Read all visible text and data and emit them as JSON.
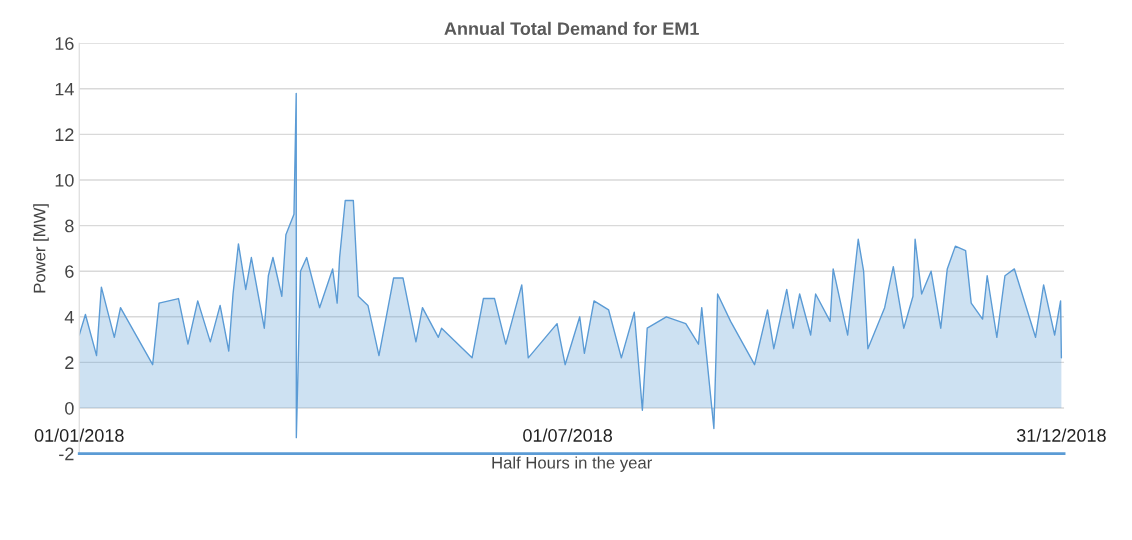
{
  "chart_data": {
    "type": "area",
    "title": "Annual Total Demand for EM1",
    "xlabel": "Half Hours in the year",
    "ylabel": "Power [MW]",
    "x": [
      "2018-01-01T00:00",
      "2018-01-03T07:00",
      "2018-01-07T10:00",
      "2018-01-09T05:00",
      "2018-01-14T00:00",
      "2018-01-16T07:00",
      "2018-01-28T05:00",
      "2018-01-30T14:00",
      "2018-02-06T19:00",
      "2018-02-10T07:00",
      "2018-02-13T22:00",
      "2018-02-18T14:00",
      "2018-02-22T05:00",
      "2018-02-25T10:00",
      "2018-02-27T00:00",
      "2018-03-01T00:00",
      "2018-03-03T17:00",
      "2018-03-05T19:00",
      "2018-03-10T14:00",
      "2018-03-12T02:00",
      "2018-03-13T19:00",
      "2018-03-17T02:00",
      "2018-03-18T14:00",
      "2018-03-21T14:00",
      "2018-03-22T10:00",
      "2018-03-22T11:00",
      "2018-03-24T00:00",
      "2018-03-26T07:00",
      "2018-03-31T02:00",
      "2018-04-04T22:00",
      "2018-04-06T14:00",
      "2018-04-07T12:00",
      "2018-04-09T14:00",
      "2018-04-12T14:00",
      "2018-04-14T10:00",
      "2018-04-18T00:00",
      "2018-04-22T02:00",
      "2018-04-27T12:00",
      "2018-05-01T00:00",
      "2018-05-05T19:00",
      "2018-05-08T05:00",
      "2018-05-14T02:00",
      "2018-05-15T07:00",
      "2018-05-26T14:00",
      "2018-05-30T19:00",
      "2018-06-03T22:00",
      "2018-06-08T02:00",
      "2018-06-14T00:00",
      "2018-06-16T10:00",
      "2018-06-27T02:00",
      "2018-06-30T02:00",
      "2018-07-05T12:00",
      "2018-07-07T05:00",
      "2018-07-10T19:00",
      "2018-07-16T05:00",
      "2018-07-20T22:00",
      "2018-07-25T17:00",
      "2018-07-28T17:00",
      "2018-07-30T12:00",
      "2018-08-06T14:00",
      "2018-08-13T19:00",
      "2018-08-18T12:00",
      "2018-08-19T17:00",
      "2018-08-24T05:00",
      "2018-08-25T00:00",
      "2018-08-25T14:00",
      "2018-08-30T10:00",
      "2018-09-08T07:00",
      "2018-09-13T02:00",
      "2018-09-15T10:00",
      "2018-09-20T05:00",
      "2018-09-22T14:00",
      "2018-09-25T00:00",
      "2018-09-29T02:00",
      "2018-09-30T22:00",
      "2018-10-06T07:00",
      "2018-10-07T10:00",
      "2018-10-12T19:00",
      "2018-10-16T17:00",
      "2018-10-18T17:00",
      "2018-10-20T07:00",
      "2018-10-26T12:00",
      "2018-10-29T17:00",
      "2018-11-02T14:00",
      "2018-11-06T00:00",
      "2018-11-06T19:00",
      "2018-11-09T05:00",
      "2018-11-12T17:00",
      "2018-11-16T07:00",
      "2018-11-18T17:00",
      "2018-11-21T17:00",
      "2018-11-25T12:00",
      "2018-11-27T14:00",
      "2018-12-01T19:00",
      "2018-12-03T12:00",
      "2018-12-07T02:00",
      "2018-12-10T02:00",
      "2018-12-13T14:00",
      "2018-12-21T10:00",
      "2018-12-24T10:00",
      "2018-12-28T12:00",
      "2018-12-30T17:00",
      "2018-12-31T00:00"
    ],
    "series": [
      {
        "color": "#5b9bd5",
        "values": [
          3.2,
          4.1,
          2.3,
          5.3,
          3.1,
          4.4,
          1.9,
          4.6,
          4.8,
          2.8,
          4.7,
          2.9,
          4.5,
          2.5,
          5.0,
          7.2,
          5.2,
          6.6,
          3.5,
          5.8,
          6.6,
          4.9,
          7.6,
          8.5,
          13.8,
          -1.3,
          6.0,
          6.6,
          4.4,
          6.1,
          4.6,
          6.6,
          9.1,
          9.1,
          4.9,
          4.5,
          2.3,
          5.7,
          5.7,
          2.9,
          4.4,
          3.1,
          3.5,
          2.2,
          4.8,
          4.8,
          2.8,
          5.4,
          2.2,
          3.7,
          1.9,
          4.0,
          2.4,
          4.7,
          4.3,
          2.2,
          4.2,
          -0.1,
          3.5,
          4.0,
          3.7,
          2.8,
          4.4,
          -0.9,
          2.3,
          5.0,
          3.8,
          1.9,
          4.3,
          2.6,
          5.2,
          3.5,
          5.0,
          3.2,
          5.0,
          3.8,
          6.1,
          3.2,
          7.4,
          6.0,
          2.6,
          4.4,
          6.2,
          3.5,
          4.9,
          7.4,
          5.0,
          6.0,
          3.5,
          6.1,
          7.1,
          6.9,
          4.6,
          3.9,
          5.8,
          3.1,
          5.8,
          6.1,
          3.1,
          5.4,
          3.2,
          4.7,
          2.2
        ]
      }
    ],
    "xlim": [
      "2018-01-01",
      "2019-01-01"
    ],
    "xticks": [
      {
        "value": "2018-01-01",
        "label": "01/01/2018"
      },
      {
        "value": "2018-07-01",
        "label": "01/07/2018"
      },
      {
        "value": "2018-12-31",
        "label": "31/12/2018"
      }
    ],
    "ylim": [
      -2,
      16
    ],
    "yticks": [
      -2,
      0,
      2,
      4,
      6,
      8,
      10,
      12,
      14,
      16
    ],
    "grid": "y",
    "legend": false
  }
}
